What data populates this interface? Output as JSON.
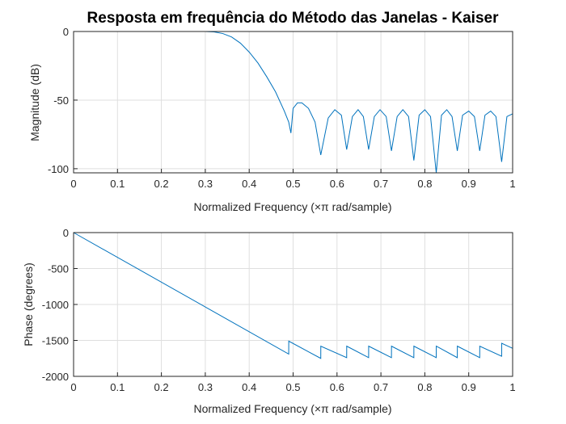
{
  "chart_data": [
    {
      "type": "line",
      "title": "Resposta em frequência do Método das Janelas - Kaiser",
      "xlabel": "Normalized Frequency  (×π rad/sample)",
      "ylabel": "Magnitude (dB)",
      "xlim": [
        0,
        1
      ],
      "ylim": [
        -103,
        0
      ],
      "xticks": [
        "0",
        "0.1",
        "0.2",
        "0.3",
        "0.4",
        "0.5",
        "0.6",
        "0.7",
        "0.8",
        "0.9",
        "1"
      ],
      "yticks": [
        "0",
        "-50",
        "-100"
      ],
      "grid": true,
      "color": "#0072BD",
      "series": [
        {
          "x": [
            0,
            0.3,
            0.32,
            0.34,
            0.36,
            0.38,
            0.4,
            0.42,
            0.44,
            0.46,
            0.48,
            0.49,
            0.495,
            0.5,
            0.51,
            0.52,
            0.535,
            0.55,
            0.563,
            0.58,
            0.595,
            0.61,
            0.622,
            0.635,
            0.648,
            0.66,
            0.672,
            0.685,
            0.698,
            0.712,
            0.724,
            0.737,
            0.75,
            0.763,
            0.775,
            0.787,
            0.8,
            0.813,
            0.826,
            0.838,
            0.85,
            0.862,
            0.874,
            0.886,
            0.9,
            0.913,
            0.925,
            0.937,
            0.95,
            0.962,
            0.975,
            0.987,
            1.0
          ],
          "y": [
            0,
            0,
            -0.3,
            -1.5,
            -4,
            -8.5,
            -15,
            -23,
            -33,
            -44,
            -58,
            -66,
            -74,
            -56,
            -52,
            -52,
            -56,
            -66,
            -90,
            -63,
            -57,
            -61,
            -86,
            -62,
            -57,
            -62,
            -86,
            -62,
            -57,
            -62,
            -87,
            -62,
            -57,
            -62,
            -94,
            -61,
            -57,
            -62,
            -103,
            -61,
            -57,
            -62,
            -87,
            -61,
            -58,
            -62,
            -87,
            -61,
            -58,
            -62,
            -95,
            -62,
            -60
          ]
        }
      ]
    },
    {
      "type": "line",
      "title": "",
      "xlabel": "Normalized Frequency  (×π rad/sample)",
      "ylabel": "Phase (degrees)",
      "xlim": [
        0,
        1
      ],
      "ylim": [
        -2000,
        0
      ],
      "xticks": [
        "0",
        "0.1",
        "0.2",
        "0.3",
        "0.4",
        "0.5",
        "0.6",
        "0.7",
        "0.8",
        "0.9",
        "1"
      ],
      "yticks": [
        "0",
        "-500",
        "-1000",
        "-1500",
        "-2000"
      ],
      "grid": true,
      "color": "#0072BD",
      "series": [
        {
          "x": [
            0,
            0.49,
            0.4901,
            0.563,
            0.5631,
            0.622,
            0.6221,
            0.672,
            0.6721,
            0.724,
            0.7241,
            0.775,
            0.7751,
            0.826,
            0.8261,
            0.874,
            0.8741,
            0.925,
            0.9251,
            0.975,
            0.9751,
            1.0
          ],
          "y": [
            0,
            -1690,
            -1510,
            -1750,
            -1580,
            -1740,
            -1580,
            -1740,
            -1580,
            -1740,
            -1580,
            -1740,
            -1580,
            -1740,
            -1580,
            -1740,
            -1580,
            -1740,
            -1580,
            -1720,
            -1540,
            -1610
          ]
        }
      ]
    }
  ]
}
